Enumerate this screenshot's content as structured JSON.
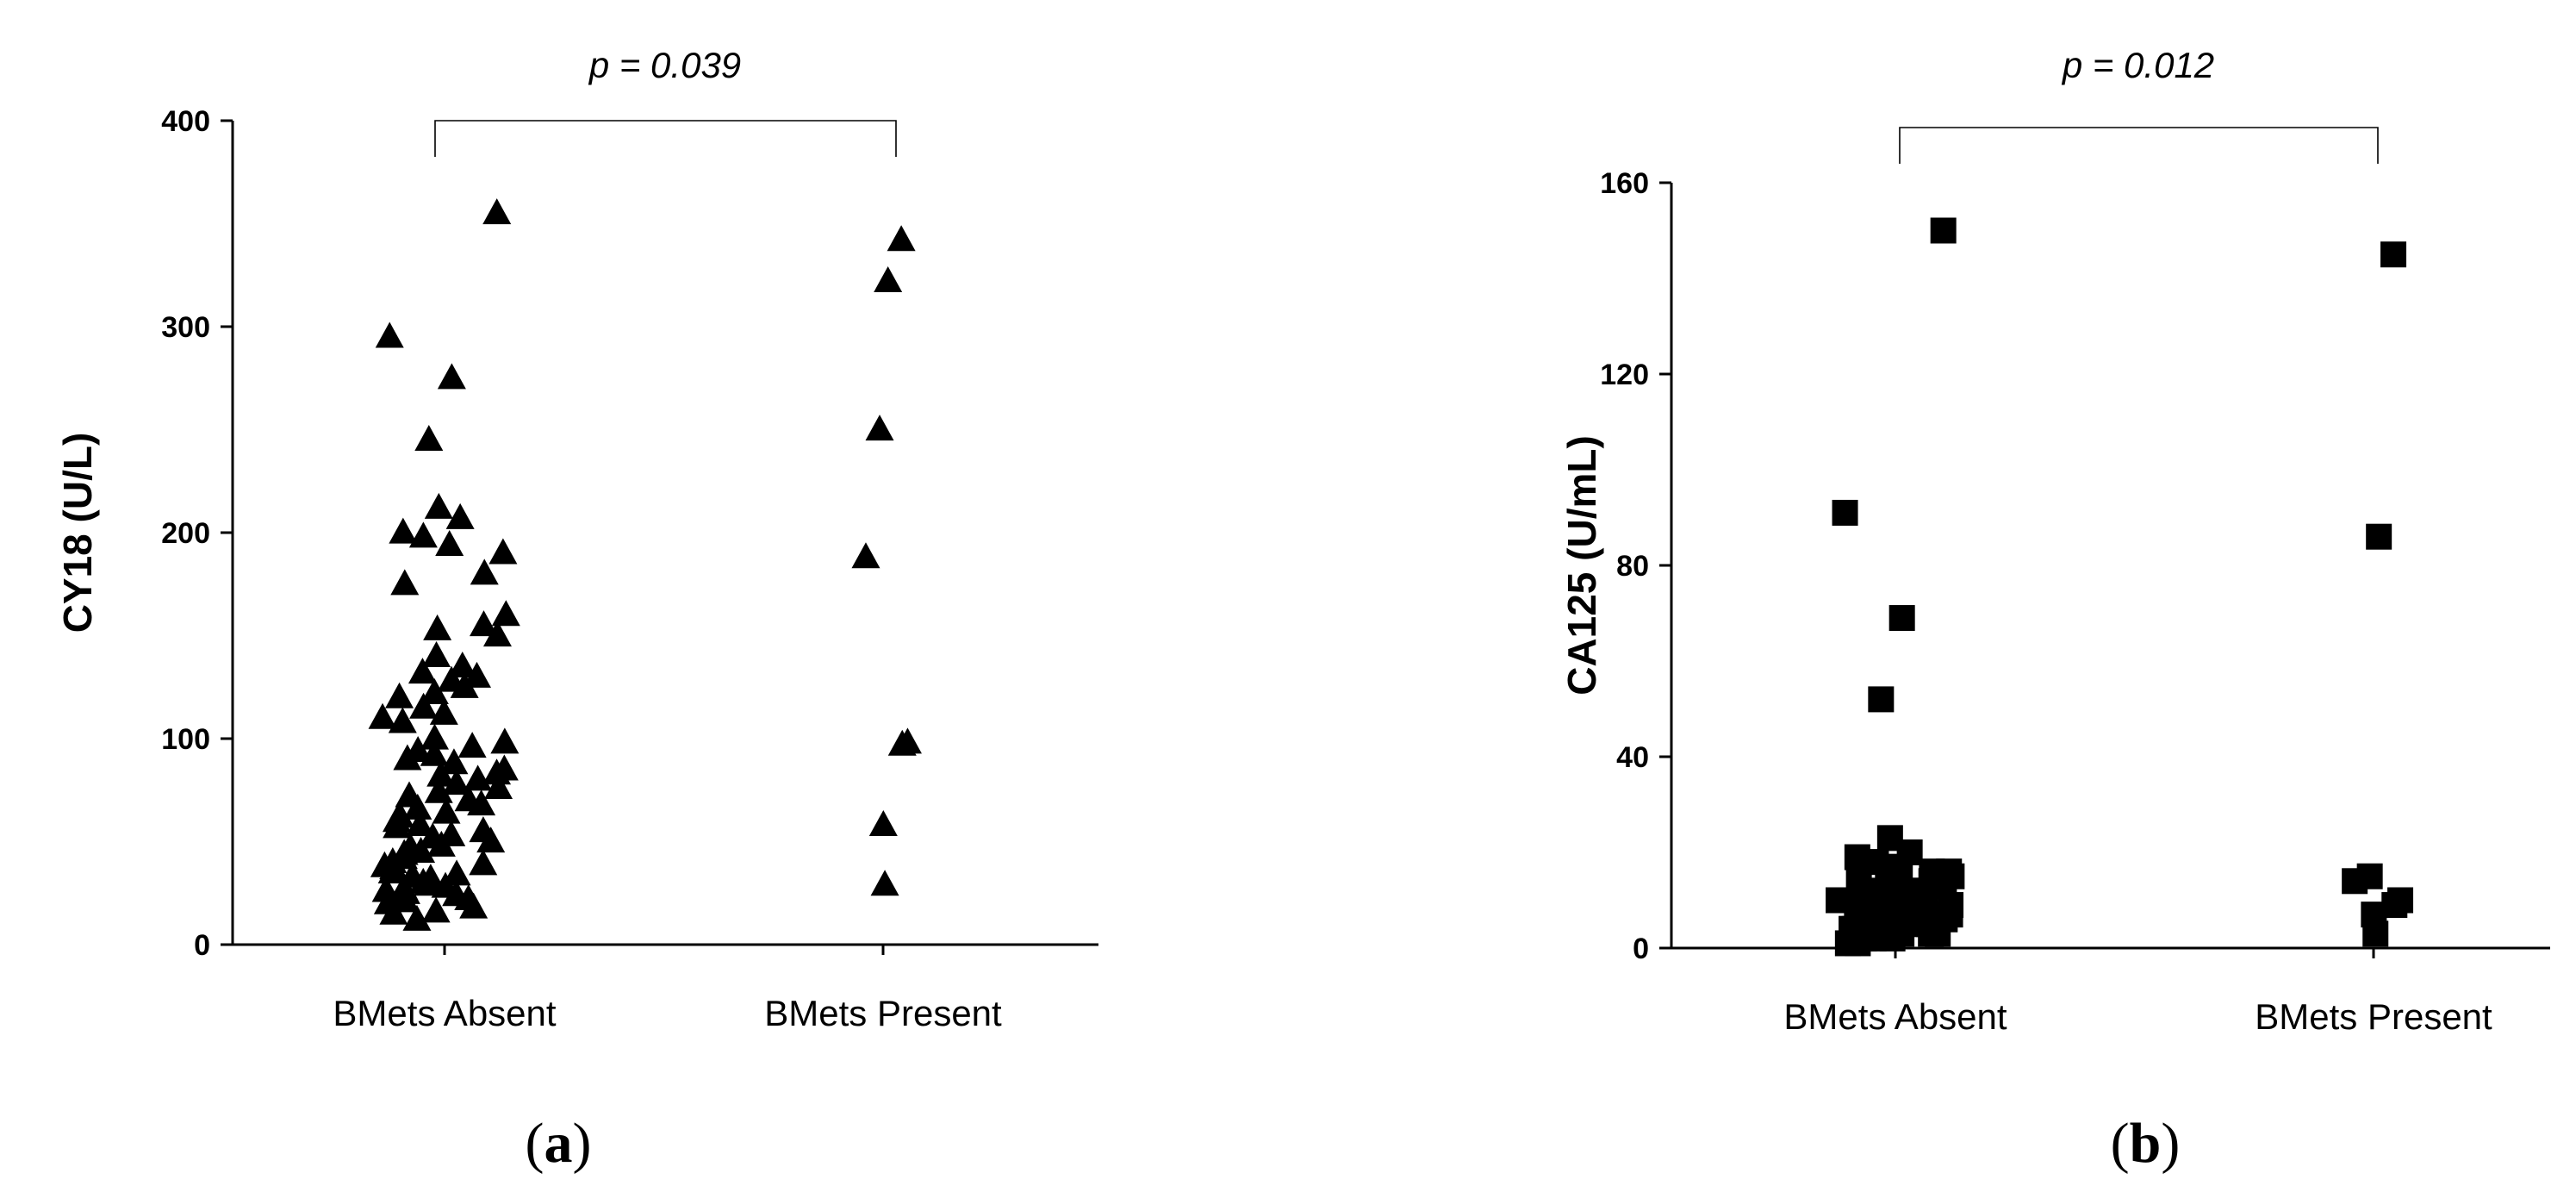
{
  "chart_data": [
    {
      "type": "scatter",
      "panel_label": "a",
      "ylabel": "CY18 (U/L)",
      "ylim": [
        0,
        400
      ],
      "yticks": [
        0,
        100,
        200,
        300,
        400
      ],
      "categories": [
        "BMets Absent",
        "BMets Present"
      ],
      "marker": "triangle",
      "comparison": {
        "text": "p = 0.039",
        "between": [
          "BMets Absent",
          "BMets Present"
        ]
      },
      "series": [
        {
          "category": "BMets Absent",
          "values": [
            355,
            295,
            275,
            245,
            212,
            207,
            200,
            198,
            194,
            190,
            180,
            175,
            160,
            155,
            153,
            150,
            140,
            135,
            132,
            130,
            128,
            125,
            122,
            120,
            115,
            112,
            110,
            108,
            100,
            98,
            96,
            94,
            92,
            90,
            88,
            85,
            83,
            82,
            80,
            78,
            76,
            74,
            72,
            70,
            68,
            66,
            64,
            62,
            60,
            58,
            57,
            55,
            53,
            52,
            50,
            48,
            47,
            45,
            44,
            42,
            40,
            39,
            38,
            37,
            35,
            34,
            33,
            32,
            30,
            29,
            28,
            27,
            26,
            25,
            24,
            23,
            22,
            21,
            20,
            18,
            16,
            15,
            12
          ]
        },
        {
          "category": "BMets Present",
          "values": [
            342,
            322,
            250,
            188,
            98,
            97,
            58,
            29
          ]
        }
      ]
    },
    {
      "type": "scatter",
      "panel_label": "b",
      "ylabel": "CA125 (U/mL)",
      "ylim": [
        0,
        160
      ],
      "yticks": [
        0,
        40,
        80,
        120,
        160
      ],
      "categories": [
        "BMets Absent",
        "BMets Present"
      ],
      "marker": "square",
      "comparison": {
        "text": "p = 0.012",
        "between": [
          "BMets Absent",
          "BMets Present"
        ]
      },
      "series": [
        {
          "category": "BMets Absent",
          "values": [
            150,
            91,
            69,
            52,
            23,
            20,
            19,
            18,
            17,
            16,
            16,
            15,
            15,
            14,
            14,
            13,
            13,
            12,
            12,
            12,
            11,
            11,
            11,
            10,
            10,
            10,
            10,
            9,
            9,
            9,
            9,
            8,
            8,
            8,
            8,
            7,
            7,
            7,
            7,
            6,
            6,
            6,
            6,
            5,
            5,
            5,
            5,
            4,
            4,
            4,
            4,
            3,
            3,
            3,
            3,
            2,
            2,
            2,
            2,
            1,
            1
          ]
        },
        {
          "category": "BMets Present",
          "values": [
            145,
            86,
            15,
            14,
            10,
            9,
            7,
            3
          ]
        }
      ]
    }
  ]
}
